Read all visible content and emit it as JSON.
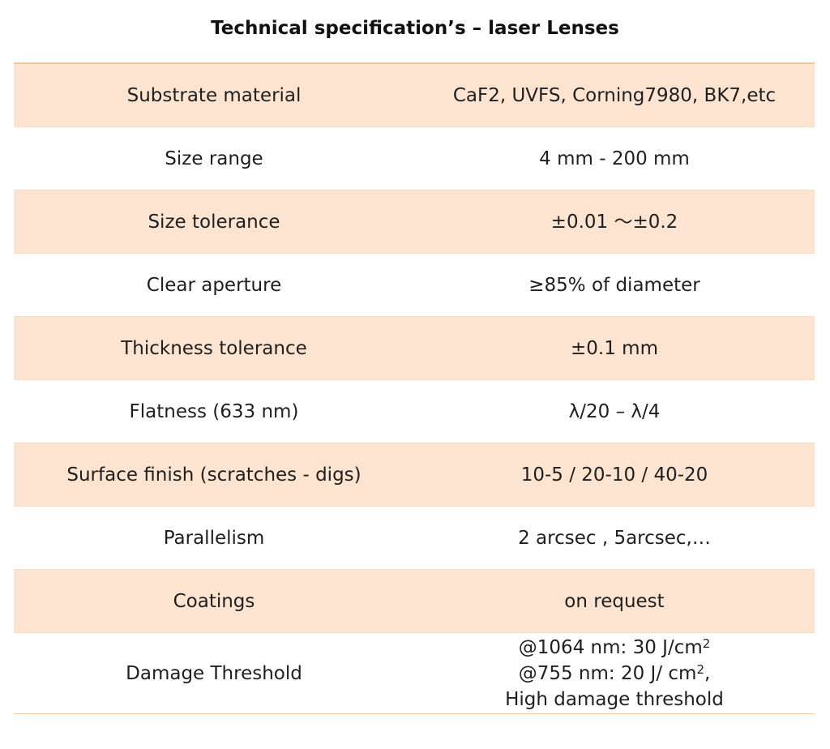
{
  "title": "Technical specification’s – laser Lenses",
  "rows": [
    {
      "parameter": "Substrate material",
      "value": "CaF2, UVFS, Corning7980, BK7,etc"
    },
    {
      "parameter": "Size range",
      "value": "4 mm - 200 mm"
    },
    {
      "parameter": "Size tolerance",
      "value": "±0.01 ～±0.2"
    },
    {
      "parameter": "Clear aperture",
      "value": "≥85% of diameter"
    },
    {
      "parameter": "Thickness tolerance",
      "value": "±0.1 mm"
    },
    {
      "parameter": "Flatness (633 nm)",
      "value": "λ/20 – λ/4"
    },
    {
      "parameter": "Surface finish (scratches - digs)",
      "value": "10-5 / 20-10 / 40-20"
    },
    {
      "parameter": "Parallelism",
      "value": "2 arcsec , 5arcsec,…"
    },
    {
      "parameter": "Coatings",
      "value": "on request"
    }
  ],
  "damage_threshold": {
    "parameter": "Damage Threshold",
    "line1": "@1064 nm: 30 J/cm",
    "line1_sup": "2",
    "line2_pre": "@755 nm: 20 J/ cm",
    "line2_sup": "2",
    "line2_post": ",",
    "line3": "High damage threshold"
  },
  "colors": {
    "row_shade": "#fce4d0",
    "border": "#f1c9a1"
  }
}
